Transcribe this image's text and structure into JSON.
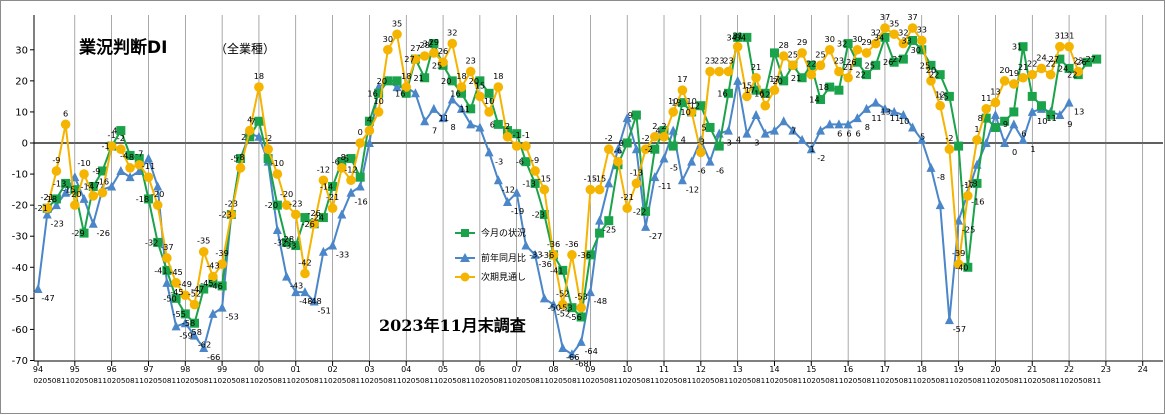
{
  "title": "業況判断DI",
  "subtitle": "（全業種）",
  "survey_note": "2023年11月末調査",
  "colors": {
    "current": "#1aa34a",
    "yoy": "#4a86c8",
    "outlook": "#f5b400",
    "axis": "#000000",
    "divider": "#707070"
  },
  "chart_data": {
    "type": "line",
    "title": "業況判断DI",
    "ylim": [
      -70,
      40
    ],
    "yticks": [
      -70,
      -60,
      -50,
      -40,
      -30,
      -20,
      -10,
      0,
      10,
      20,
      30
    ],
    "grid": false,
    "legend_position": "center",
    "month_cycle": [
      "02",
      "05",
      "08",
      "11"
    ],
    "year_labels": [
      "94",
      "95",
      "96",
      "97",
      "98",
      "99",
      "00",
      "01",
      "02",
      "03",
      "04",
      "05",
      "06",
      "07",
      "08",
      "09",
      "10",
      "11",
      "12",
      "13",
      "14",
      "15",
      "16",
      "17",
      "18",
      "19",
      "20",
      "21",
      "22",
      "23",
      "24"
    ],
    "series": [
      {
        "name": "今月の状況",
        "marker": "square",
        "values": [
          null,
          -21,
          -18,
          -13,
          -15,
          -29,
          -14,
          -9,
          -1,
          4,
          -4,
          -5,
          -18,
          -32,
          -41,
          -50,
          -55,
          -58,
          -47,
          -45,
          -46,
          -23,
          -5,
          2,
          7,
          -5,
          -20,
          -32,
          -33,
          -24,
          -26,
          -24,
          -14,
          -6,
          -5,
          -11,
          7,
          16,
          20,
          20,
          16,
          27,
          21,
          32,
          25,
          20,
          16,
          11,
          20,
          16,
          6,
          4,
          3,
          -6,
          -13,
          -23,
          -36,
          -41,
          -53,
          -56,
          -36,
          -29,
          -25,
          -7,
          0,
          9,
          -22,
          -2,
          4,
          -1,
          13,
          10,
          12,
          5,
          -1,
          16,
          34,
          34,
          17,
          16,
          29,
          20,
          25,
          21,
          25,
          14,
          18,
          17,
          32,
          26,
          22,
          25,
          34,
          26,
          27,
          33,
          30,
          25,
          22,
          15,
          -1,
          -40,
          -13,
          8,
          5,
          7,
          10,
          31,
          15,
          12,
          9,
          27,
          24,
          22,
          26,
          27
        ],
        "labels": [
          "",
          "-21",
          "-18",
          "-13",
          "-15",
          "-29",
          "-14",
          "-9",
          "-1",
          "4",
          "-4",
          "",
          "-18",
          "-32",
          "-41",
          "-50",
          "-55",
          "-58",
          "-47",
          "-45",
          "-46",
          "-23",
          "-5",
          "2",
          "7",
          "",
          "-20",
          "-32",
          "-33",
          "",
          "-26",
          "-24",
          "-14",
          "-6",
          "-5",
          "",
          "",
          "16",
          "20",
          "",
          "16",
          "27",
          "21",
          "32",
          "25",
          "20",
          "16",
          "11",
          "20",
          "",
          "6",
          "",
          "",
          "-6",
          "-13",
          "-23",
          "-36",
          "-41",
          "-53",
          "-56",
          "-36",
          "",
          "",
          "",
          "0",
          "9",
          "-22",
          "-2",
          "4",
          "",
          "13",
          "10",
          "12",
          "5",
          "",
          "16",
          "34",
          "34",
          "17",
          "16",
          "",
          "20",
          "",
          "21",
          "",
          "14",
          "18",
          "",
          "32",
          "26",
          "22",
          "25",
          "34",
          "26",
          "27",
          "33",
          "30",
          "25",
          "22",
          "15",
          "",
          "-40",
          "-13",
          "8",
          "",
          "",
          "",
          "31",
          "",
          "",
          "",
          "27",
          "24",
          "22",
          "26",
          "27"
        ]
      },
      {
        "name": "前年同月比",
        "marker": "triangle",
        "values": [
          -47,
          -23,
          -20,
          -16,
          -11,
          -18,
          -26,
          -15,
          -14,
          -9,
          -11,
          -9,
          -5,
          -14,
          -45,
          -59,
          -58,
          -62,
          -66,
          -55,
          -53,
          -23,
          -5,
          3,
          2,
          -6,
          -28,
          -43,
          -48,
          -48,
          -51,
          -35,
          -33,
          -23,
          -16,
          -14,
          0,
          18,
          20,
          18,
          18,
          16,
          7,
          11,
          8,
          14,
          11,
          6,
          5,
          -3,
          -12,
          -19,
          -16,
          -33,
          -36,
          -50,
          -52,
          -66,
          -68,
          -64,
          -48,
          -25,
          -13,
          -2,
          8,
          -2,
          -27,
          -11,
          -5,
          4,
          -12,
          -6,
          1,
          -6,
          3,
          4,
          20,
          3,
          9,
          3,
          4,
          7,
          4,
          1,
          -2,
          4,
          6,
          6,
          6,
          8,
          11,
          13,
          11,
          10,
          9,
          5,
          1,
          -8,
          -20,
          -57,
          -25,
          -16,
          -7,
          0,
          9,
          0,
          6,
          1,
          10,
          11,
          10,
          9,
          13
        ],
        "labels": [
          "-47",
          "-23",
          "",
          "",
          "",
          "",
          "-26",
          "",
          "",
          "",
          "",
          "",
          "",
          "",
          "-45",
          "-59",
          "-58",
          "-62",
          "-66",
          "",
          "-53",
          "",
          "",
          "",
          "",
          "",
          "-28",
          "-43",
          "-48",
          "-48",
          "-51",
          "",
          "-33",
          "",
          "-16",
          "",
          "",
          "",
          "",
          "",
          "",
          "",
          "7",
          "11",
          "8",
          "",
          "",
          "",
          "",
          "-3",
          "-12",
          "-19",
          "",
          "-33",
          "-36",
          "-50",
          "-52",
          "-66",
          "-68",
          "-64",
          "-48",
          "-25",
          "",
          "",
          "",
          "",
          "-27",
          "-11",
          "-5",
          "4",
          "-12",
          "-6",
          "",
          "-6",
          "3",
          "4",
          "",
          "3",
          "",
          "",
          "",
          "7",
          "",
          "1",
          "-2",
          "",
          "6",
          "6",
          "6",
          "8",
          "11",
          "13",
          "11",
          "10",
          "",
          "5",
          "",
          "-8",
          "",
          "-57",
          "-25",
          "-16",
          "",
          "",
          "9",
          "0",
          "6",
          "1",
          "10",
          "11",
          "",
          "9",
          "13"
        ]
      },
      {
        "name": "次期見通し",
        "marker": "circle",
        "values": [
          null,
          -21,
          -9,
          6,
          -20,
          -10,
          -17,
          -16,
          -1,
          -2,
          -8,
          -7,
          -11,
          -20,
          -37,
          -45,
          -49,
          -52,
          -35,
          -43,
          -39,
          -23,
          -8,
          4,
          18,
          -2,
          -10,
          -20,
          -23,
          -42,
          -26,
          -12,
          -21,
          -8,
          -12,
          0,
          4,
          10,
          30,
          35,
          18,
          27,
          28,
          29,
          26,
          32,
          18,
          23,
          15,
          10,
          18,
          2,
          -1,
          -1,
          -9,
          -15,
          -36,
          -52,
          -36,
          -53,
          -15,
          -15,
          -2,
          -6,
          -21,
          -13,
          -2,
          2,
          2,
          10,
          17,
          10,
          -3,
          23,
          23,
          23,
          31,
          15,
          21,
          12,
          17,
          28,
          25,
          29,
          22,
          25,
          30,
          23,
          21,
          30,
          29,
          32,
          37,
          35,
          32,
          37,
          33,
          20,
          12,
          -2,
          -39,
          -17,
          1,
          11,
          13,
          20,
          19,
          21,
          22,
          24,
          22,
          31,
          31,
          23
        ],
        "labels": [
          "",
          "-21",
          "-9",
          "6",
          "-20",
          "-10",
          "-17",
          "-16",
          "-1",
          "-2",
          "-8",
          "-7",
          "-11",
          "-20",
          "-37",
          "-45",
          "-49",
          "-52",
          "-35",
          "-43",
          "-39",
          "-23",
          "-8",
          "4",
          "18",
          "-2",
          "-10",
          "-20",
          "-23",
          "-42",
          "-26",
          "-12",
          "-21",
          "-8",
          "-12",
          "0",
          "4",
          "10",
          "30",
          "35",
          "18",
          "27",
          "28",
          "29",
          "26",
          "32",
          "18",
          "23",
          "15",
          "10",
          "18",
          "2",
          "-1",
          "-1",
          "-9",
          "-15",
          "-36",
          "-52",
          "-36",
          "-53",
          "-15",
          "-15",
          "-2",
          "-6",
          "-21",
          "-13",
          "-2",
          "2",
          "2",
          "10",
          "17",
          "10",
          "-3",
          "23",
          "23",
          "23",
          "31",
          "15",
          "21",
          "12",
          "17",
          "28",
          "25",
          "29",
          "22",
          "25",
          "30",
          "23",
          "21",
          "30",
          "29",
          "32",
          "37",
          "35",
          "32",
          "37",
          "33",
          "20",
          "12",
          "-2",
          "-39",
          "-17",
          "1",
          "11",
          "13",
          "20",
          "19",
          "21",
          "22",
          "24",
          "22",
          "31",
          "31",
          "23"
        ]
      }
    ]
  }
}
